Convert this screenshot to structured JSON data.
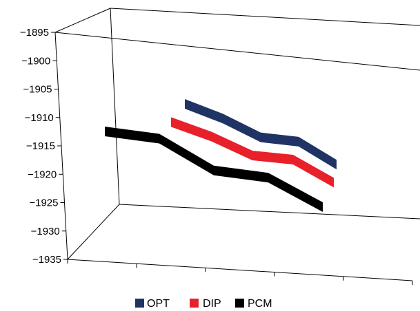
{
  "chart_data": {
    "type": "line",
    "title": "",
    "xlabel": "",
    "ylabel": "",
    "ylim": [
      -1935,
      -1895
    ],
    "yticks": [
      -1895,
      -1900,
      -1905,
      -1910,
      -1915,
      -1920,
      -1925,
      -1930,
      -1935
    ],
    "ytick_labels": [
      "−1895",
      "−1900",
      "−1905",
      "−1910",
      "−1915",
      "−1920",
      "−1925",
      "−1930",
      "−1935"
    ],
    "x": [
      1,
      2,
      3,
      4,
      5
    ],
    "grid": false,
    "three_d": true,
    "legend_position": "bottom",
    "series": [
      {
        "name": "OPT",
        "color": "#1f3464",
        "values": [
          -1906,
          -1911,
          -1918,
          -1918,
          -1927
        ]
      },
      {
        "name": "DIP",
        "color": "#e8202a",
        "values": [
          -1907.5,
          -1912.5,
          -1919.5,
          -1919.5,
          -1928.5
        ]
      },
      {
        "name": "PCM",
        "color": "#000000",
        "values": [
          -1910,
          -1910,
          -1920.5,
          -1920.5,
          -1930
        ]
      }
    ]
  }
}
